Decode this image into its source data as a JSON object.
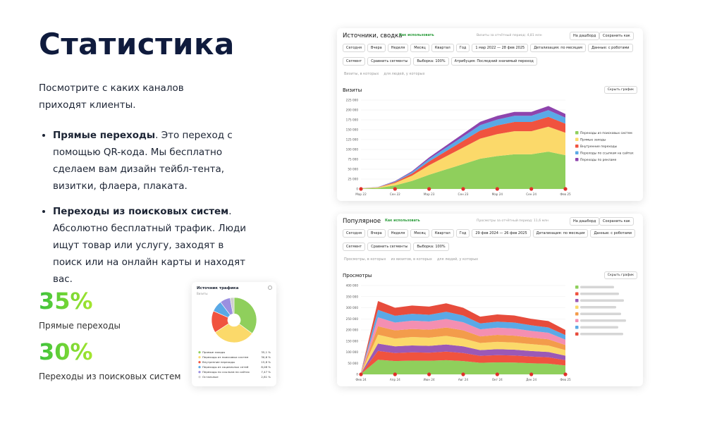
{
  "header": {
    "title": "Статистика"
  },
  "intro": "Посмотрите с каких каналов приходят клиенты.",
  "bullets": [
    {
      "bold": "Прямые переходы",
      "text": ". Это переход с помощью QR-кода. Мы бесплатно сделаем вам дизайн тейбл-тента, визитки, флаера, плаката."
    },
    {
      "bold": "Переходы из поисковых систем",
      "text": ". Абсолютно бесплатный трафик. Люди ищут товар или услугу, заходят в поиск или на онлайн карты и находят вас."
    }
  ],
  "stats": [
    {
      "value": "35%",
      "label": "Прямые переходы"
    },
    {
      "value": "30%",
      "label": "Переходы из поисковых систем"
    }
  ],
  "screens": [
    {
      "title": "Источники, сводка",
      "help": "Как использовать",
      "total": "Визиты за отчётный период: 4,81 млн",
      "dash": "На дашборд",
      "save": "Сохранить как",
      "rows": [
        [
          "Сегодня",
          "Вчера",
          "Неделя",
          "Месяц",
          "Квартал",
          "Год",
          "1 мар 2022 — 28 фев 2025",
          "Детализация: по месяцам",
          "Данные: с роботами"
        ],
        [
          "Сегмент",
          "Сравнить сегменты",
          "Выборка: 100%",
          "Атрибуция: Последний значимый переход"
        ],
        [
          "Визиты, в которых",
          "для людей, у которых"
        ]
      ],
      "hide": "Скрыть график"
    },
    {
      "title": "Популярное",
      "help": "Как использовать",
      "total": "Просмотры за отчётный период: 11,6 млн",
      "dash": "На дашборд",
      "save": "Сохранить как",
      "rows": [
        [
          "Сегодня",
          "Вчера",
          "Неделя",
          "Месяц",
          "Квартал",
          "Год",
          "29 фев 2024 — 26 фев 2025",
          "Детализация: по месяцам",
          "Данные: с роботами"
        ],
        [
          "Сегмент",
          "Сравнить сегменты",
          "Выборка: 100%"
        ],
        [
          "Просмотры, в которых",
          "из визитов, в которых",
          "для людей, у которых"
        ]
      ],
      "hide": "Скрыть график"
    }
  ],
  "pie_card": {
    "title": "Источник трафика",
    "subtitle": "Визиты"
  },
  "chart_data": [
    {
      "type": "area",
      "stacked": true,
      "title": "Визиты",
      "categories": [
        "Мар 22",
        null,
        "Сен 22",
        null,
        "Мар 23",
        null,
        "Сен 23",
        null,
        "Мар 24",
        null,
        "Сен 24",
        null,
        "Фев 25"
      ],
      "ylim": [
        0,
        225000
      ],
      "yticks": [
        0,
        {
          "value": 25000,
          "label": "25 000"
        },
        {
          "value": 50000,
          "label": "50 000"
        },
        {
          "value": 75000,
          "label": "75 000"
        },
        {
          "value": 100000,
          "label": "100 000"
        },
        {
          "value": 125000,
          "label": "125 000"
        },
        {
          "value": 150000,
          "label": "150 000"
        },
        {
          "value": 175000,
          "label": "175 000"
        },
        {
          "value": 200000,
          "label": "200 000"
        },
        {
          "value": 225000,
          "label": "225 000"
        }
      ],
      "grid": true,
      "series": [
        {
          "name": "Переходы из поисковых систем",
          "color": "#8fcf5c",
          "values": [
            900,
            2250,
            9000,
            20250,
            36000,
            49500,
            63000,
            76500,
            83250,
            87750,
            87750,
            94500,
            85500
          ]
        },
        {
          "name": "Прямые заходы",
          "color": "#fbd96a",
          "values": [
            600,
            1500,
            6000,
            13500,
            24000,
            33000,
            42000,
            51000,
            55500,
            58500,
            58500,
            63000,
            57000
          ]
        },
        {
          "name": "Внутренние переходы",
          "color": "#f0533f",
          "values": [
            240,
            600,
            2400,
            5400,
            9600,
            13200,
            16800,
            20400,
            22200,
            23400,
            23400,
            25200,
            22800
          ]
        },
        {
          "name": "Переходы по ссылкам на сайтах",
          "color": "#5aa9e6",
          "values": [
            160,
            400,
            1600,
            3600,
            6400,
            8800,
            11200,
            13600,
            14800,
            15600,
            15600,
            16800,
            15200
          ]
        },
        {
          "name": "Переходы по рекламе",
          "color": "#8e44ad",
          "values": [
            100,
            250,
            1000,
            2250,
            4000,
            5500,
            7000,
            8500,
            9250,
            9750,
            9750,
            10500,
            9500
          ]
        }
      ]
    },
    {
      "type": "area",
      "stacked": true,
      "title": "Просмотры",
      "categories": [
        "Фев 24",
        null,
        "Апр 24",
        null,
        "Июн 24",
        null,
        "Авг 24",
        null,
        "Окт 24",
        null,
        "Дек 24",
        null,
        "Фев 25"
      ],
      "ylim": [
        0,
        400000
      ],
      "yticks": [
        0,
        {
          "value": 50000,
          "label": "50 000"
        },
        {
          "value": 100000,
          "label": "100 000"
        },
        {
          "value": 150000,
          "label": "150 000"
        },
        {
          "value": 200000,
          "label": "200 000"
        },
        {
          "value": 250000,
          "label": "250 000"
        },
        {
          "value": 300000,
          "label": "300 000"
        },
        {
          "value": 350000,
          "label": "350 000"
        },
        {
          "value": 400000,
          "label": "400 000"
        }
      ],
      "grid": true,
      "series": [
        {
          "color": "#8fcf5c",
          "values": [
            2000,
            66000,
            60000,
            62000,
            61000,
            64000,
            60000,
            52000,
            54000,
            53000,
            50000,
            48000,
            40000
          ]
        },
        {
          "color": "#f0533f",
          "values": [
            1200,
            39600,
            36000,
            37200,
            36600,
            38400,
            36000,
            31200,
            32400,
            31800,
            30000,
            28800,
            24000
          ]
        },
        {
          "color": "#9b59b6",
          "values": [
            1000,
            33000,
            30000,
            31000,
            30500,
            32000,
            30000,
            26000,
            27000,
            26500,
            25000,
            24000,
            20000
          ]
        },
        {
          "color": "#fbd96a",
          "values": [
            1300,
            40000,
            35000,
            38000,
            37000,
            39000,
            35500,
            32000,
            33000,
            32000,
            31000,
            29000,
            25000
          ]
        },
        {
          "color": "#f39c4b",
          "values": [
            1100,
            38000,
            37000,
            36000,
            36000,
            37500,
            37000,
            30000,
            31500,
            31000,
            29500,
            28000,
            23000
          ]
        },
        {
          "color": "#f48fb1",
          "values": [
            1200,
            40000,
            35500,
            37500,
            37000,
            38500,
            36000,
            31500,
            32500,
            32000,
            30000,
            29500,
            24500
          ]
        },
        {
          "color": "#5aa9e6",
          "values": [
            1000,
            34000,
            30500,
            31000,
            30000,
            32500,
            30500,
            26500,
            27000,
            27000,
            25500,
            24000,
            20500
          ]
        },
        {
          "color": "#e74c3c",
          "values": [
            1200,
            39400,
            36000,
            37300,
            36900,
            38100,
            35000,
            30800,
            32600,
            31700,
            29000,
            28700,
            23000
          ]
        }
      ]
    },
    {
      "type": "pie",
      "donut": true,
      "categories": [
        "Прямые заходы",
        "Переходы из поисковых систем",
        "Внутренние переходы",
        "Переходы из социальных сетей",
        "Переходы по ссылкам на сайтах",
        "Остальные"
      ],
      "values": [
        35.1,
        30.6,
        15.8,
        8.08,
        7.47,
        2.81
      ],
      "value_labels": [
        "35,1 %",
        "30,6 %",
        "15,8 %",
        "8,08 %",
        "7,47 %",
        "2,81 %"
      ],
      "colors": [
        "#8fcf5c",
        "#fbd96a",
        "#f0533f",
        "#5aa9e6",
        "#9b8fe0",
        "#cfcfcf"
      ]
    }
  ]
}
